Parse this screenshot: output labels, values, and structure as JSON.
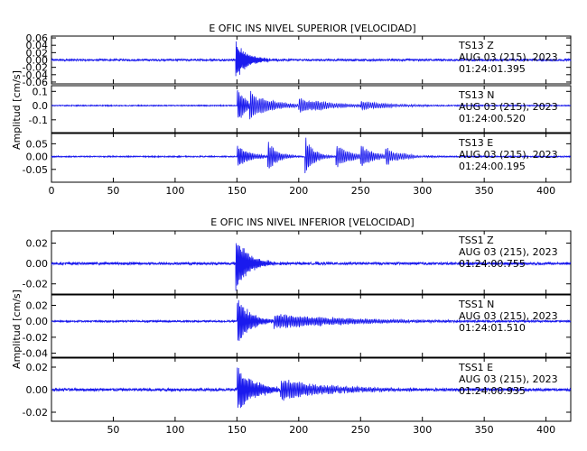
{
  "chart_data": [
    {
      "type": "line",
      "title": "E OFIC INS NIVEL SUPERIOR [VELOCIDAD]",
      "ylabel": "Amplitud [cm/s]",
      "xlim": [
        0,
        420
      ],
      "xticks": [
        "0",
        "50",
        "100",
        "150",
        "200",
        "250",
        "300",
        "350",
        "400"
      ],
      "xtick_values": [
        0,
        50,
        100,
        150,
        200,
        250,
        300,
        350,
        400
      ],
      "series_color": "#1a1aee",
      "panels": [
        {
          "station": "TS13",
          "channel": "Z",
          "date": "AUG 03 (215), 2023",
          "time": "01:24:01.395",
          "ylim": [
            -0.065,
            0.065
          ],
          "yticks": [
            "0.06",
            "0.04",
            "0.02",
            "0.00",
            "-0.02",
            "-0.04",
            "-0.06"
          ],
          "ytick_values": [
            0.06,
            0.04,
            0.02,
            0.0,
            -0.02,
            -0.04,
            -0.06
          ],
          "noise": 0.0025,
          "events": [
            {
              "t": 149,
              "amp": 0.058,
              "decay": 9,
              "period": 0.8,
              "plateau": 0
            }
          ]
        },
        {
          "station": "TS13",
          "channel": "N",
          "date": "AUG 03 (215), 2023",
          "time": "01:24:00.520",
          "ylim": [
            -0.19,
            0.14
          ],
          "yticks": [
            "0.1",
            "0.0",
            "-0.1"
          ],
          "ytick_values": [
            0.1,
            0.0,
            -0.1
          ],
          "noise": 0.003,
          "events": [
            {
              "t": 150,
              "amp": 0.16,
              "decay": 6,
              "period": 1.2,
              "plateau": 0
            },
            {
              "t": 160,
              "amp": 0.1,
              "decay": 18,
              "period": 1.4,
              "plateau": 0
            },
            {
              "t": 200,
              "amp": 0.06,
              "decay": 25,
              "period": 1.5,
              "plateau": 0
            },
            {
              "t": 250,
              "amp": 0.04,
              "decay": 25,
              "period": 1.5,
              "plateau": 0
            }
          ]
        },
        {
          "station": "TS13",
          "channel": "E",
          "date": "AUG 03 (215), 2023",
          "time": "01:24:00.195",
          "ylim": [
            -0.1,
            0.09
          ],
          "yticks": [
            "0.05",
            "0.00",
            "-0.05"
          ],
          "ytick_values": [
            0.05,
            0.0,
            -0.05
          ],
          "noise": 0.002,
          "events": [
            {
              "t": 150,
              "amp": 0.05,
              "decay": 10,
              "period": 1.2,
              "plateau": 0
            },
            {
              "t": 175,
              "amp": 0.06,
              "decay": 8,
              "period": 1.3,
              "plateau": 0
            },
            {
              "t": 205,
              "amp": 0.085,
              "decay": 7,
              "period": 1.3,
              "plateau": 0
            },
            {
              "t": 230,
              "amp": 0.05,
              "decay": 12,
              "period": 1.4,
              "plateau": 0
            },
            {
              "t": 250,
              "amp": 0.045,
              "decay": 10,
              "period": 1.4,
              "plateau": 0
            },
            {
              "t": 270,
              "amp": 0.04,
              "decay": 12,
              "period": 1.5,
              "plateau": 0
            }
          ]
        }
      ]
    },
    {
      "type": "line",
      "title": "E OFIC INS NIVEL INFERIOR [VELOCIDAD]",
      "ylabel": "Amplitud [cm/s]",
      "xlim": [
        0,
        420
      ],
      "xticks": [
        "50",
        "100",
        "150",
        "200",
        "250",
        "300",
        "350",
        "400"
      ],
      "xtick_values": [
        50,
        100,
        150,
        200,
        250,
        300,
        350,
        400
      ],
      "series_color": "#1a1aee",
      "panels": [
        {
          "station": "TSS1",
          "channel": "Z",
          "date": "AUG 03 (215), 2023",
          "time": "01:24:00.755",
          "ylim": [
            -0.03,
            0.032
          ],
          "yticks": [
            "0.02",
            "0.00",
            "-0.02"
          ],
          "ytick_values": [
            0.02,
            0.0,
            -0.02
          ],
          "noise": 0.0012,
          "events": [
            {
              "t": 149,
              "amp": 0.03,
              "decay": 10,
              "period": 0.9,
              "plateau": 0
            }
          ]
        },
        {
          "station": "TSS1",
          "channel": "N",
          "date": "AUG 03 (215), 2023",
          "time": "01:24:01.510",
          "ylim": [
            -0.045,
            0.033
          ],
          "yticks": [
            "0.02",
            "0.00",
            "-0.02",
            "-0.04"
          ],
          "ytick_values": [
            0.02,
            0.0,
            -0.02,
            -0.04
          ],
          "noise": 0.001,
          "events": [
            {
              "t": 150,
              "amp": 0.035,
              "decay": 10,
              "period": 1.0,
              "plateau": 0
            },
            {
              "t": 180,
              "amp": 0.01,
              "decay": 60,
              "period": 1.2,
              "plateau": 0
            }
          ]
        },
        {
          "station": "TSS1",
          "channel": "E",
          "date": "AUG 03 (215), 2023",
          "time": "01:24:00.935",
          "ylim": [
            -0.028,
            0.028
          ],
          "yticks": [
            "0.02",
            "0.00",
            "-0.02"
          ],
          "ytick_values": [
            0.02,
            0.0,
            -0.02
          ],
          "noise": 0.0012,
          "events": [
            {
              "t": 150,
              "amp": 0.022,
              "decay": 14,
              "period": 1.0,
              "plateau": 0
            },
            {
              "t": 185,
              "amp": 0.01,
              "decay": 40,
              "period": 1.2,
              "plateau": 0
            }
          ]
        }
      ]
    }
  ]
}
